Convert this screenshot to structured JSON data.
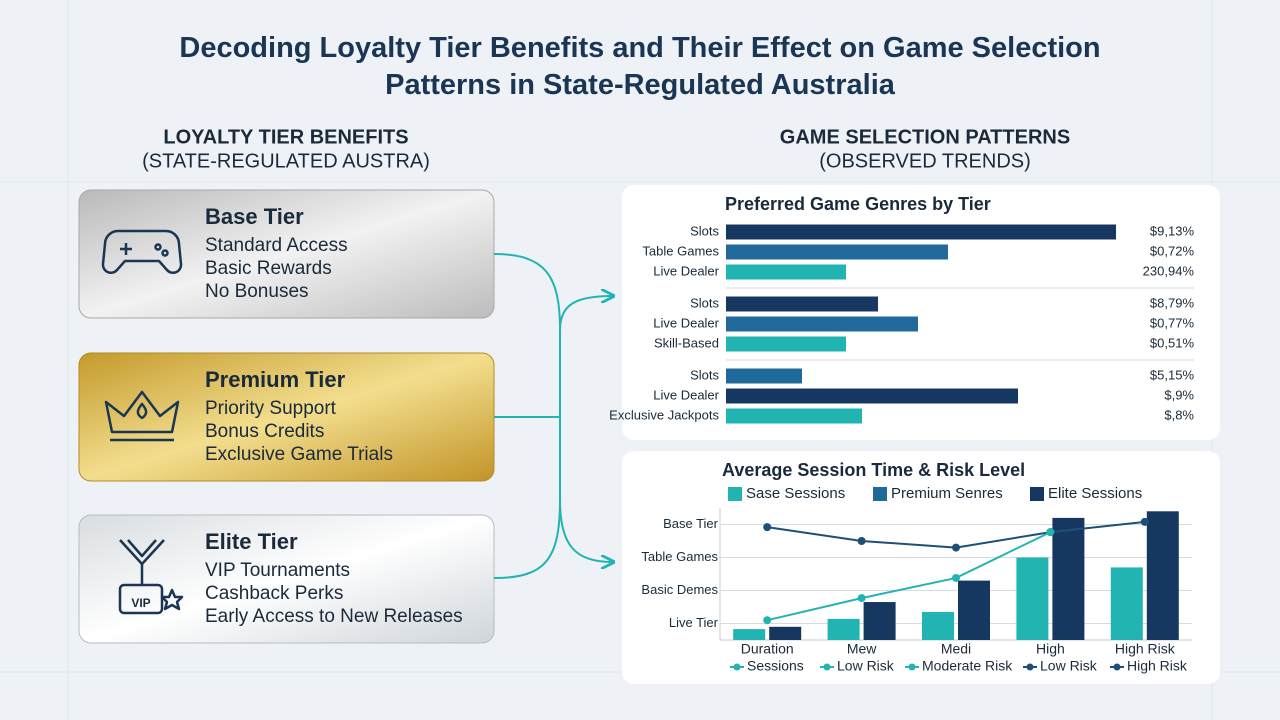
{
  "title": "Decoding Loyalty Tier Benefits and Their Effect on Game Selection Patterns in State-Regulated Australia",
  "left_heading": "LOYALTY TIER BENEFITS",
  "left_subheading": "(STATE-REGULATED AUSTRA)",
  "right_heading": "GAME SELECTION PATTERNS",
  "right_subheading": "(OBSERVED TRENDS)",
  "tiers": [
    {
      "name": "Base Tier",
      "benefits": [
        "Standard Access",
        "Basic Rewards",
        "No Bonuses"
      ]
    },
    {
      "name": "Premium Tier",
      "benefits": [
        "Priority Support",
        "Bonus Credits",
        "Exclusive Game Trials"
      ]
    },
    {
      "name": "Elite Tier",
      "benefits": [
        "VIP Tournaments",
        "Cashback Perks",
        "Early Access to New Releases"
      ],
      "icon_text": "VIP"
    }
  ],
  "chart_data": [
    {
      "type": "hbar",
      "title": "Preferred Game Genres by Tier",
      "xlim": [
        0,
        100
      ],
      "groups": [
        {
          "categories": [
            "Slots",
            "Table Games",
            "Live Dealer"
          ],
          "values": [
            97.5,
            55.5,
            30
          ],
          "value_labels": [
            "$9,13%",
            "$0,72%",
            "230,94%"
          ],
          "colors": [
            "#16375f",
            "#1f6a9a",
            "#22b3b3"
          ]
        },
        {
          "categories": [
            "Slots",
            "Live Dealer",
            "Skill-Based"
          ],
          "values": [
            38,
            48,
            30
          ],
          "value_labels": [
            "$8,79%",
            "$0,77%",
            "$0,51%"
          ],
          "colors": [
            "#16375f",
            "#1f6a9a",
            "#22b3b3"
          ]
        },
        {
          "categories": [
            "Slots",
            "Live Dealer",
            "Exclusive Jackpots"
          ],
          "values": [
            19,
            73,
            34
          ],
          "value_labels": [
            "$5,15%",
            "$,9%",
            "$,8%"
          ],
          "colors": [
            "#1f6a9a",
            "#16375f",
            "#22b3b3"
          ]
        }
      ]
    },
    {
      "type": "combo",
      "title": "Average Session Time & Risk Level",
      "categories": [
        "Duration",
        "Mew",
        "Medi",
        "High",
        "High Risk"
      ],
      "ylim": [
        0,
        4
      ],
      "yticks": [
        {
          "value": 3.5,
          "label": "Base Tier"
        },
        {
          "value": 2.5,
          "label": "Table Games"
        },
        {
          "value": 1.5,
          "label": "Basic Demes"
        },
        {
          "value": 0.5,
          "label": "Live Tier"
        }
      ],
      "grid": true,
      "series": [
        {
          "name": "Sase Sessions",
          "type": "bar",
          "color": "#22b3b3",
          "values": [
            0.33,
            0.64,
            0.85,
            2.5,
            2.2
          ]
        },
        {
          "name": "Premium Senres",
          "type": "bar",
          "color": "#1f6a9a",
          "values": [
            null,
            null,
            null,
            null,
            null
          ]
        },
        {
          "name": "Elite Sessions",
          "type": "bar",
          "color": "#16375f",
          "values": [
            0.4,
            1.15,
            1.8,
            3.7,
            3.9
          ]
        },
        {
          "type": "line",
          "color": "#1f4f78",
          "values": [
            3.42,
            3.0,
            2.8,
            3.27,
            3.58
          ]
        },
        {
          "type": "line",
          "color": "#22b3b3",
          "values": [
            0.6,
            1.27,
            1.88,
            3.27,
            null
          ]
        }
      ],
      "line_legend": [
        {
          "label": "Sessions",
          "color": "#22b3b3"
        },
        {
          "label": "Low Risk",
          "color": "#22b3b3"
        },
        {
          "label": "Moderate Risk",
          "color": "#22b3b3"
        },
        {
          "label": "Low Risk",
          "color": "#1f4f78"
        },
        {
          "label": "High Risk",
          "color": "#1f4f78"
        }
      ]
    }
  ]
}
